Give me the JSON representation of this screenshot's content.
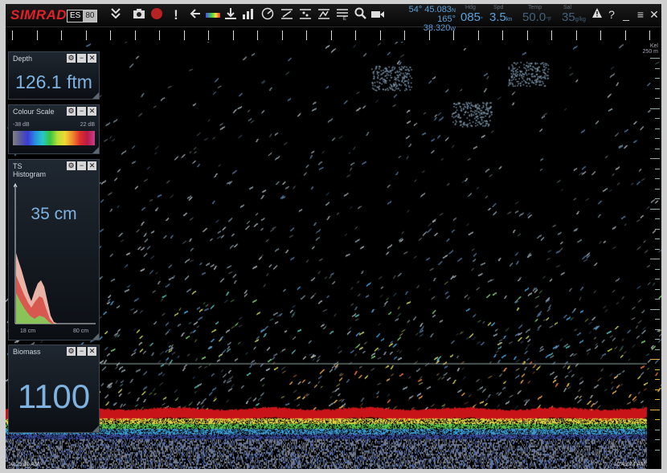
{
  "toolbar": {
    "logo": "SIMRAD",
    "model_left": "ES",
    "model_right": "80",
    "icons": [
      "collapse-menu-icon",
      "camera-icon",
      "record-icon",
      "alarm-exclamation-icon",
      "back-arrow-icon",
      "colour-bar-icon",
      "bottom-lock-icon",
      "bar-graph-icon",
      "sweep-icon",
      "zoom-echogram-icon",
      "bottom-echogram-icon",
      "compare-echogram-icon",
      "layers-icon",
      "magnify-icon",
      "video-icon"
    ],
    "latitude": "54° 45.083",
    "latitude_hem": "N",
    "longitude": "165° 38.320",
    "longitude_hem": "W",
    "heading_label": "Hdg",
    "heading_value": "085",
    "heading_unit": "°",
    "speed_label": "Spd",
    "speed_value": "3.5",
    "speed_unit": "kn",
    "temp_label": "Temp",
    "temp_value": "50.0",
    "temp_unit": "°F",
    "sal_label": "Sal",
    "sal_value": "35",
    "sal_unit": "g/kg",
    "warning_icon": "warning-icon",
    "help_label": "?",
    "minimize_label": "_",
    "menu_label": "≡",
    "close_label": "✕"
  },
  "panels": {
    "depth": {
      "title": "Depth",
      "value": "126.1 ftm"
    },
    "colour_scale": {
      "title": "Colour Scale",
      "min": "-38 dB",
      "max": "22 dB"
    },
    "ts_histogram": {
      "title_line1": "TS",
      "title_line2": "Histogram",
      "value": "35 cm",
      "x_min": "18 cm",
      "x_max": "80 cm"
    },
    "biomass": {
      "title": "Biomass",
      "value": "1100"
    }
  },
  "panel_buttons": {
    "settings": "⚙",
    "minimize": "−",
    "close": "✕"
  },
  "echogram": {
    "range_label": "Kel",
    "range_label2": "250 m",
    "start_time": "10:29:11 AM",
    "end_time": "10:49:24 AM"
  },
  "colors": {
    "bottom_red": "#c81418",
    "school_orange": "#e99a55",
    "depth_text": "#7fb2e0",
    "logo_red": "#e3202a"
  }
}
